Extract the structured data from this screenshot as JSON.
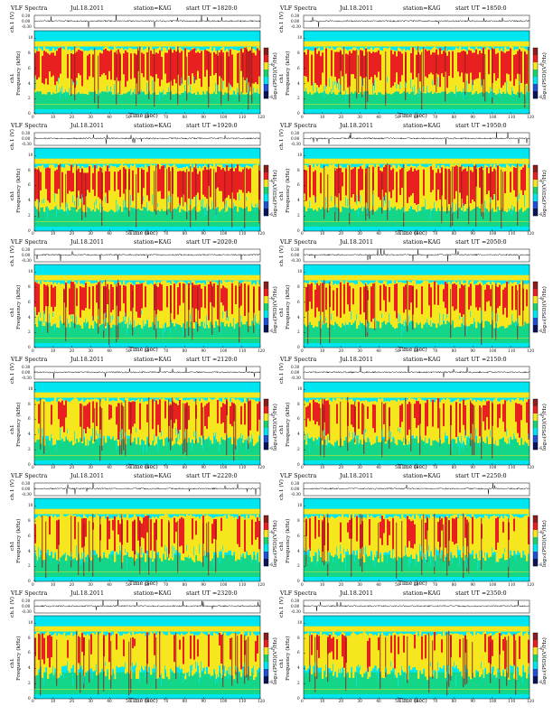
{
  "page": {
    "title": "VLF Spectra panels"
  },
  "common": {
    "header_label": "VLF Spectra",
    "x_axis_label": "Time  (sec)",
    "y_axis_label": "Frequency  (kHz)",
    "trace_label": "ch.1 (V)",
    "channel_label": "ch1",
    "colorbar_label": "log₁₀(PSD)(V²/Hz)",
    "x_ticks": [
      "0",
      "10",
      "20",
      "30",
      "40",
      "50",
      "60",
      "70",
      "80",
      "90",
      "100",
      "110",
      "120"
    ],
    "y_ticks": [
      "0",
      "2",
      "4",
      "6",
      "8",
      "10"
    ],
    "trace_ticks": [
      "0.30",
      "0.00",
      "-0.30"
    ],
    "colorbar_ticks": [
      "-4",
      "-6"
    ],
    "colors": {
      "bg": "#ffffff",
      "cyan": "#00e6f0",
      "green": "#19d26e",
      "yellow": "#f6e61e",
      "red": "#e82020",
      "darkred": "#8c1e1e",
      "blue": "#1e50d2",
      "navy": "#0a145a"
    }
  },
  "panels": [
    {
      "date": "Jul.18.2011",
      "station": "station=KAG",
      "start": "start  UT  =1820:0"
    },
    {
      "date": "Jul.18.2011",
      "station": "station=KAG",
      "start": "start  UT  =1850:0"
    },
    {
      "date": "Jul.18.2011",
      "station": "station=KAG",
      "start": "start  UT  =1920:0"
    },
    {
      "date": "Jul.18.2011",
      "station": "station=KAG",
      "start": "start  UT  =1950:0"
    },
    {
      "date": "Jul.18.2011",
      "station": "station=KAG",
      "start": "start  UT  =2020:0"
    },
    {
      "date": "Jul.18.2011",
      "station": "station=KAG",
      "start": "start  UT  =2050:0"
    },
    {
      "date": "Jul.18.2011",
      "station": "station=KAG",
      "start": "start  UT  =2120:0"
    },
    {
      "date": "Jul.18.2011",
      "station": "station=KAG",
      "start": "start  UT  =2150:0"
    },
    {
      "date": "Jul.18.2011",
      "station": "station=KAG",
      "start": "start  UT  =2220:0"
    },
    {
      "date": "Jul.18.2011",
      "station": "station=KAG",
      "start": "start  UT  =2250:0"
    },
    {
      "date": "Jul.18.2011",
      "station": "station=KAG",
      "start": "start  UT  =2320:0"
    },
    {
      "date": "Jul.18.2011",
      "station": "station=KAG",
      "start": "start  UT  =2350:0"
    }
  ],
  "chart_data": {
    "type": "heatmap",
    "x_range_sec": [
      0,
      120
    ],
    "y_range_khz": [
      0,
      11
    ],
    "trace_range_v": [
      -0.3,
      0.3
    ],
    "grid": false,
    "legend": "colorbar right of each panel",
    "note_bands": [
      "cyan band above ~9.5 kHz",
      "red/yellow activity 4-9 kHz",
      "green/cyan below 4 kHz"
    ]
  }
}
